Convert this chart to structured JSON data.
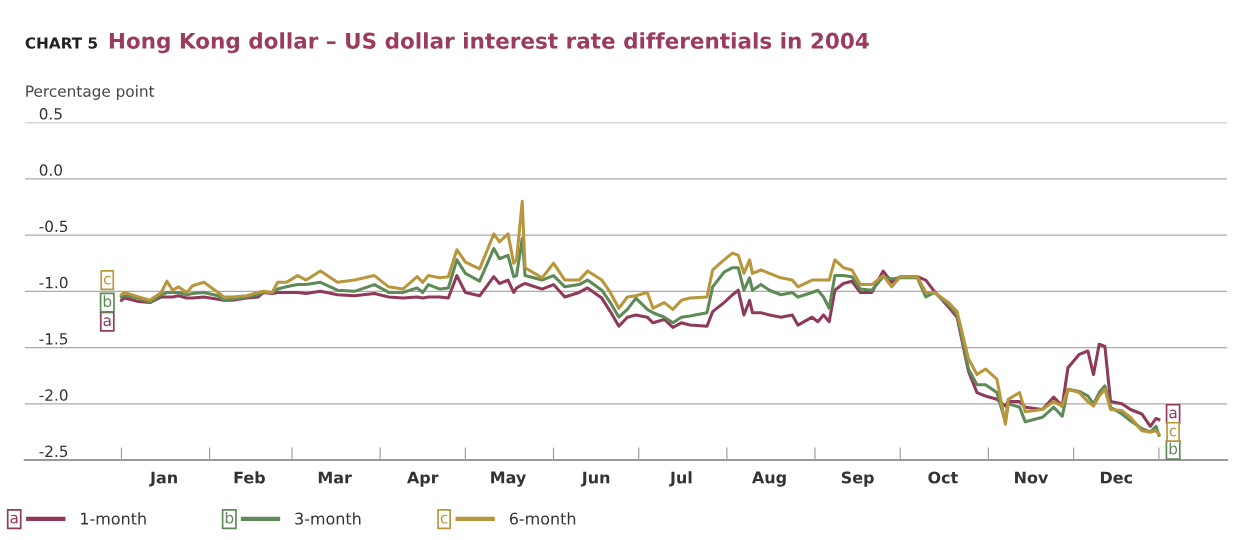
{
  "chart_data": {
    "type": "line",
    "subtitle": "CHART 5",
    "title": "Hong Kong dollar – US dollar interest rate differentials in 2004",
    "ylabel": "Percentage point",
    "x": [
      "2004-01-01",
      "2004-01-02",
      "2004-01-07",
      "2004-01-11",
      "2004-01-15",
      "2004-01-17",
      "2004-01-19",
      "2004-01-21",
      "2004-01-24",
      "2004-01-26",
      "2004-01-30",
      "2004-02-04",
      "2004-02-06",
      "2004-02-09",
      "2004-02-14",
      "2004-02-18",
      "2004-02-20",
      "2004-02-23",
      "2004-02-25",
      "2004-02-28",
      "2004-03-03",
      "2004-03-06",
      "2004-03-11",
      "2004-03-17",
      "2004-03-23",
      "2004-03-30",
      "2004-04-04",
      "2004-04-09",
      "2004-04-14",
      "2004-04-16",
      "2004-04-18",
      "2004-04-22",
      "2004-04-25",
      "2004-04-28",
      "2004-05-01",
      "2004-05-06",
      "2004-05-11",
      "2004-05-13",
      "2004-05-16",
      "2004-05-18",
      "2004-05-19",
      "2004-05-21",
      "2004-05-22",
      "2004-05-28",
      "2004-06-01",
      "2004-06-05",
      "2004-06-10",
      "2004-06-13",
      "2004-06-18",
      "2004-06-21",
      "2004-06-24",
      "2004-06-27",
      "2004-06-30",
      "2004-07-04",
      "2004-07-06",
      "2004-07-10",
      "2004-07-13",
      "2004-07-16",
      "2004-07-19",
      "2004-07-25",
      "2004-07-27",
      "2004-07-31",
      "2004-08-03",
      "2004-08-05",
      "2004-08-07",
      "2004-08-09",
      "2004-08-10",
      "2004-08-13",
      "2004-08-16",
      "2004-08-20",
      "2004-08-24",
      "2004-08-26",
      "2004-08-31",
      "2004-09-02",
      "2004-09-04",
      "2004-09-06",
      "2004-09-08",
      "2004-09-11",
      "2004-09-14",
      "2004-09-17",
      "2004-09-21",
      "2004-09-25",
      "2004-09-28",
      "2004-10-01",
      "2004-10-07",
      "2004-10-10",
      "2004-10-13",
      "2004-10-18",
      "2004-10-21",
      "2004-10-25",
      "2004-10-28",
      "2004-10-31",
      "2004-11-04",
      "2004-11-07",
      "2004-11-08",
      "2004-11-12",
      "2004-11-14",
      "2004-11-20",
      "2004-11-24",
      "2004-11-27",
      "2004-11-29",
      "2004-12-03",
      "2004-12-06",
      "2004-12-08",
      "2004-12-10",
      "2004-12-12",
      "2004-12-14",
      "2004-12-18",
      "2004-12-21",
      "2004-12-25",
      "2004-12-28",
      "2004-12-30",
      "2004-12-31"
    ],
    "series": [
      {
        "name": "1-month",
        "color": "#8f3a5a",
        "values": [
          -1.08,
          -1.06,
          -1.09,
          -1.1,
          -1.05,
          -1.05,
          -1.05,
          -1.04,
          -1.06,
          -1.06,
          -1.05,
          -1.07,
          -1.08,
          -1.08,
          -1.06,
          -1.05,
          -1.01,
          -1.02,
          -1.01,
          -1.01,
          -1.01,
          -1.02,
          -1.0,
          -1.03,
          -1.04,
          -1.02,
          -1.05,
          -1.06,
          -1.05,
          -1.06,
          -1.05,
          -1.05,
          -1.06,
          -0.86,
          -1.01,
          -1.04,
          -0.87,
          -0.93,
          -0.9,
          -1.01,
          -0.97,
          -0.94,
          -0.93,
          -0.98,
          -0.94,
          -1.05,
          -1.01,
          -0.97,
          -1.06,
          -1.18,
          -1.31,
          -1.23,
          -1.21,
          -1.23,
          -1.28,
          -1.25,
          -1.32,
          -1.28,
          -1.3,
          -1.31,
          -1.18,
          -1.1,
          -1.03,
          -0.99,
          -1.21,
          -1.08,
          -1.19,
          -1.19,
          -1.21,
          -1.23,
          -1.21,
          -1.3,
          -1.23,
          -1.27,
          -1.21,
          -1.27,
          -0.99,
          -0.93,
          -0.91,
          -1.01,
          -1.01,
          -0.82,
          -0.92,
          -0.87,
          -0.87,
          -0.9,
          -1.0,
          -1.14,
          -1.23,
          -1.71,
          -1.9,
          -1.93,
          -1.96,
          -2.02,
          -1.98,
          -1.98,
          -2.03,
          -2.05,
          -1.94,
          -2.02,
          -1.68,
          -1.56,
          -1.53,
          -1.74,
          -1.47,
          -1.49,
          -1.98,
          -2.0,
          -2.05,
          -2.09,
          -2.2,
          -2.13,
          -2.14
        ]
      },
      {
        "name": "3-month",
        "color": "#5e8a57",
        "values": [
          -1.05,
          -1.04,
          -1.06,
          -1.1,
          -1.03,
          -1.01,
          -1.01,
          -1.01,
          -1.03,
          -1.02,
          -1.01,
          -1.04,
          -1.08,
          -1.07,
          -1.05,
          -1.03,
          -1.01,
          -1.01,
          -0.98,
          -0.96,
          -0.94,
          -0.94,
          -0.92,
          -0.99,
          -1.0,
          -0.94,
          -1.01,
          -1.01,
          -0.97,
          -1.01,
          -0.94,
          -0.98,
          -0.97,
          -0.72,
          -0.84,
          -0.91,
          -0.62,
          -0.71,
          -0.68,
          -0.87,
          -0.86,
          -0.53,
          -0.86,
          -0.9,
          -0.86,
          -0.96,
          -0.94,
          -0.9,
          -0.99,
          -1.1,
          -1.23,
          -1.16,
          -1.06,
          -1.16,
          -1.19,
          -1.23,
          -1.28,
          -1.23,
          -1.22,
          -1.19,
          -0.96,
          -0.83,
          -0.79,
          -0.79,
          -0.99,
          -0.88,
          -0.99,
          -0.94,
          -0.99,
          -1.03,
          -1.01,
          -1.05,
          -1.01,
          -0.99,
          -1.05,
          -1.15,
          -0.86,
          -0.86,
          -0.87,
          -0.98,
          -0.99,
          -0.87,
          -0.89,
          -0.88,
          -0.88,
          -1.05,
          -1.01,
          -1.12,
          -1.21,
          -1.69,
          -1.83,
          -1.83,
          -1.9,
          -2.16,
          -2.0,
          -2.03,
          -2.16,
          -2.12,
          -2.03,
          -2.11,
          -1.87,
          -1.89,
          -1.93,
          -2.0,
          -1.9,
          -1.84,
          -2.03,
          -2.09,
          -2.15,
          -2.22,
          -2.25,
          -2.2,
          -2.28
        ]
      },
      {
        "name": "6-month",
        "color": "#b8963c",
        "values": [
          -1.03,
          -1.01,
          -1.05,
          -1.08,
          -1.01,
          -0.91,
          -0.99,
          -0.96,
          -1.01,
          -0.95,
          -0.92,
          -1.01,
          -1.05,
          -1.05,
          -1.04,
          -1.01,
          -1.0,
          -1.01,
          -0.92,
          -0.92,
          -0.86,
          -0.9,
          -0.82,
          -0.92,
          -0.9,
          -0.86,
          -0.96,
          -0.98,
          -0.87,
          -0.92,
          -0.86,
          -0.88,
          -0.87,
          -0.63,
          -0.74,
          -0.8,
          -0.49,
          -0.56,
          -0.49,
          -0.75,
          -0.72,
          -0.2,
          -0.79,
          -0.88,
          -0.75,
          -0.9,
          -0.9,
          -0.82,
          -0.9,
          -1.01,
          -1.15,
          -1.05,
          -1.04,
          -1.01,
          -1.15,
          -1.1,
          -1.16,
          -1.08,
          -1.06,
          -1.05,
          -0.81,
          -0.72,
          -0.66,
          -0.68,
          -0.84,
          -0.72,
          -0.84,
          -0.81,
          -0.84,
          -0.88,
          -0.9,
          -0.96,
          -0.9,
          -0.9,
          -0.9,
          -0.9,
          -0.72,
          -0.79,
          -0.81,
          -0.94,
          -0.94,
          -0.86,
          -0.96,
          -0.87,
          -0.87,
          -1.01,
          -1.01,
          -1.1,
          -1.18,
          -1.6,
          -1.74,
          -1.69,
          -1.78,
          -2.18,
          -1.96,
          -1.9,
          -2.07,
          -2.05,
          -1.98,
          -2.02,
          -1.87,
          -1.9,
          -1.98,
          -2.02,
          -1.93,
          -1.87,
          -2.05,
          -2.06,
          -2.12,
          -2.24,
          -2.25,
          -2.24,
          -2.27
        ]
      }
    ],
    "annotations": [
      {
        "text": "a",
        "x": "2003-12-27",
        "y": -1.27
      },
      {
        "text": "b",
        "x": "2003-12-27",
        "y": -1.1
      },
      {
        "text": "c",
        "x": "2003-12-27",
        "y": -0.9
      },
      {
        "text": "a",
        "x": "2005-01-05",
        "y": -2.09
      },
      {
        "text": "b",
        "x": "2005-01-05",
        "y": -2.41
      },
      {
        "text": "c",
        "x": "2005-01-05",
        "y": -2.25
      }
    ],
    "xlim": [
      "2003-11-28",
      "2005-01-24"
    ],
    "xticks": [
      {
        "value": "2004-01-01",
        "label": null
      },
      {
        "value": "2004-01-16",
        "label": "Jan"
      },
      {
        "value": "2004-02-01",
        "label": null
      },
      {
        "value": "2004-02-15",
        "label": "Feb"
      },
      {
        "value": "2004-03-01",
        "label": null
      },
      {
        "value": "2004-03-16",
        "label": "Mar"
      },
      {
        "value": "2004-04-01",
        "label": null
      },
      {
        "value": "2004-04-16",
        "label": "Apr"
      },
      {
        "value": "2004-05-01",
        "label": null
      },
      {
        "value": "2004-05-16",
        "label": "May"
      },
      {
        "value": "2004-06-01",
        "label": null
      },
      {
        "value": "2004-06-16",
        "label": "Jun"
      },
      {
        "value": "2004-07-01",
        "label": null
      },
      {
        "value": "2004-07-16",
        "label": "Jul"
      },
      {
        "value": "2004-08-01",
        "label": null
      },
      {
        "value": "2004-08-16",
        "label": "Aug"
      },
      {
        "value": "2004-09-01",
        "label": null
      },
      {
        "value": "2004-09-16",
        "label": "Sep"
      },
      {
        "value": "2004-10-01",
        "label": null
      },
      {
        "value": "2004-10-16",
        "label": "Oct"
      },
      {
        "value": "2004-11-01",
        "label": null
      },
      {
        "value": "2004-11-16",
        "label": "Nov"
      },
      {
        "value": "2004-12-01",
        "label": null
      },
      {
        "value": "2004-12-16",
        "label": "Dec"
      },
      {
        "value": "2004-12-31",
        "label": null
      }
    ],
    "ylim": [
      -2.5,
      0.5
    ],
    "yticks": [
      {
        "value": -2.5,
        "label": "-2.5"
      },
      {
        "value": -2.0,
        "label": "-2.0"
      },
      {
        "value": -1.5,
        "label": "-1.5"
      },
      {
        "value": -1.0,
        "label": "-1.0"
      },
      {
        "value": -0.5,
        "label": "-0.5"
      },
      {
        "value": 0.0,
        "label": "0.0"
      },
      {
        "value": 0.5,
        "label": "0.5"
      }
    ],
    "grid": "y",
    "legend": "bottom",
    "marker": "none",
    "line_style": "solid"
  }
}
